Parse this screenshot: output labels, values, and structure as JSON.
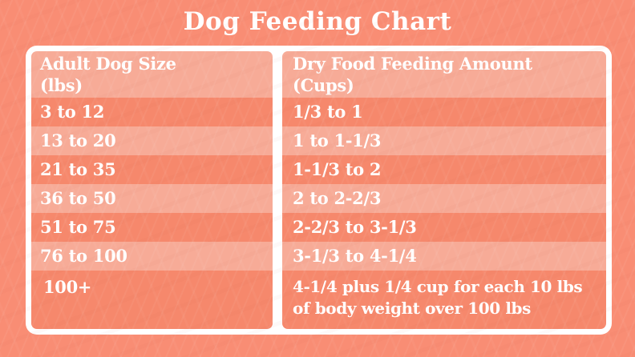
{
  "page": {
    "title": "Dog Feeding Chart"
  },
  "table": {
    "col1_header": [
      "Adult Dog Size",
      "(lbs)"
    ],
    "col2_header": [
      "Dry Food Feeding Amount",
      "(Cups)"
    ]
  },
  "chart_data": {
    "type": "table",
    "title": "Dog Feeding Chart",
    "columns": [
      "Adult Dog Size (lbs)",
      "Dry Food Feeding Amount (Cups)"
    ],
    "rows": [
      [
        "3 to 12",
        "1/3 to 1"
      ],
      [
        "13 to 20",
        "1 to 1-1/3"
      ],
      [
        "21 to 35",
        "1-1/3 to 2"
      ],
      [
        "36 to 50",
        "2 to 2-2/3"
      ],
      [
        "51 to 75",
        "2-2/3 to 3-1/3"
      ],
      [
        "76 to 100",
        "3-1/3 to 4-1/4"
      ],
      [
        "100+",
        "4-1/4 plus 1/4 cup for each 10 lbs of body weight over 100 lbs"
      ]
    ]
  },
  "colors": {
    "background": "#F98D74",
    "row_dark": "#F6886C",
    "row_light": "#F7AB97",
    "frame": "#FFFFFF",
    "text": "#FFFFFF"
  }
}
